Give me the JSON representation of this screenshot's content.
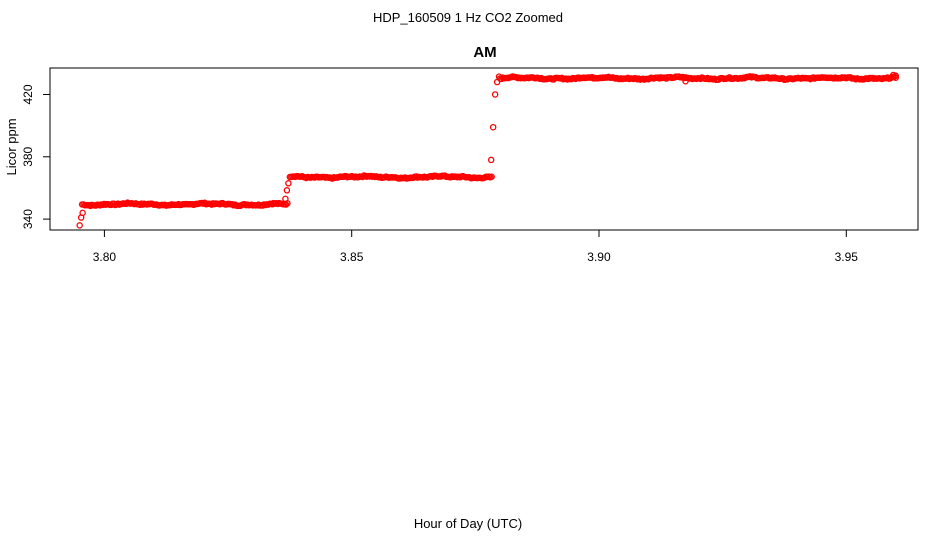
{
  "figure": {
    "outer_title": "HDP_160509  1 Hz CO2 Zoomed",
    "outer_xlabel": "Hour of Day (UTC)"
  },
  "chart_data": {
    "type": "scatter",
    "title": "AM",
    "xlabel": "",
    "ylabel": "Licor ppm",
    "xlim": [
      3.789,
      3.9645
    ],
    "ylim": [
      333,
      437
    ],
    "xticks": [
      "3.80",
      "3.85",
      "3.90",
      "3.95"
    ],
    "yticks": [
      "340",
      "380",
      "420"
    ],
    "xtick_values": [
      3.8,
      3.85,
      3.9,
      3.95
    ],
    "ytick_values": [
      340,
      380,
      420
    ],
    "marker": "open-circle",
    "grid": false,
    "legend": "none",
    "colors": {
      "points": "#ff0000",
      "axes": "#000000"
    },
    "series": [
      {
        "segments": [
          {
            "x_start": 3.7955,
            "x_end": 3.837,
            "level": 349.5
          },
          {
            "x_start": 3.8375,
            "x_end": 3.8783,
            "level": 367.0
          },
          {
            "x_start": 3.88,
            "x_end": 3.96,
            "level": 430.5
          }
        ],
        "transitions": [
          {
            "x": 3.795,
            "y": 336.0
          },
          {
            "x": 3.7953,
            "y": 341.0
          },
          {
            "x": 3.7956,
            "y": 344.0
          },
          {
            "x": 3.8366,
            "y": 353.0
          },
          {
            "x": 3.8369,
            "y": 358.5
          },
          {
            "x": 3.8372,
            "y": 363.0
          },
          {
            "x": 3.8782,
            "y": 378.0
          },
          {
            "x": 3.8786,
            "y": 399.0
          },
          {
            "x": 3.879,
            "y": 420.0
          },
          {
            "x": 3.8794,
            "y": 428.0
          },
          {
            "x": 3.8798,
            "y": 431.5
          },
          {
            "x": 3.9175,
            "y": 428.5
          },
          {
            "x": 3.9595,
            "y": 432.5
          },
          {
            "x": 3.96,
            "y": 432.0
          }
        ]
      }
    ]
  }
}
